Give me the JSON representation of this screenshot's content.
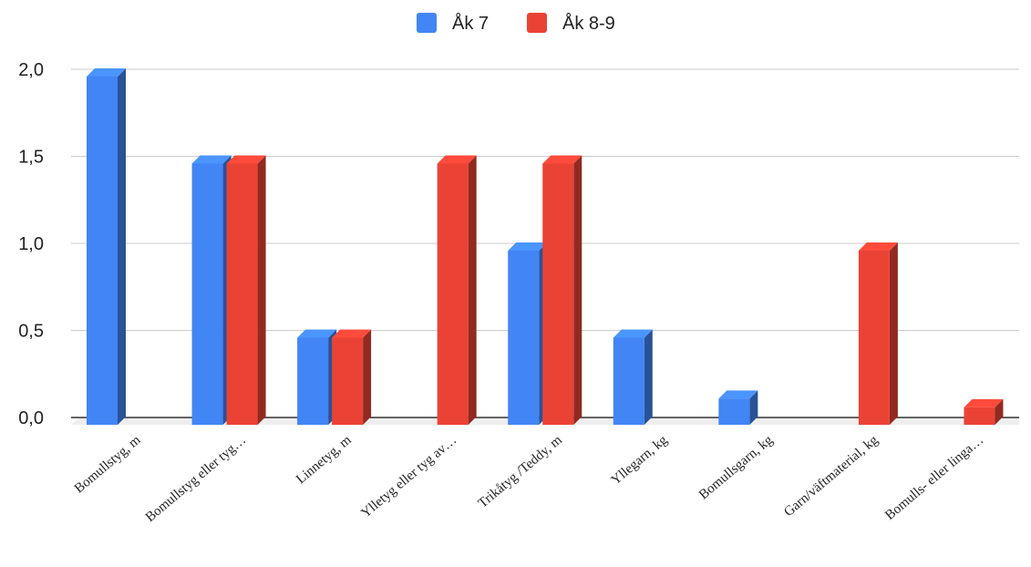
{
  "chart_data": {
    "type": "bar",
    "style": "3d",
    "categories": [
      "Bomullstyg, m",
      "Bomullstyg eller tyg…",
      "Linnetyg, m",
      "Ylletyg eller tyg av…",
      "Trikåtyg /Teddy, m",
      "Yllegarn, kg",
      "Bomullsgarn, kg",
      "Garn/väftmaterial, kg",
      "Bomulls- eller linga…"
    ],
    "series": [
      {
        "name": "Åk 7",
        "color": "#4285f4",
        "values": [
          2.0,
          1.5,
          0.5,
          0,
          1.0,
          0.5,
          0.15,
          0,
          0
        ]
      },
      {
        "name": "Åk 8-9",
        "color": "#ea4335",
        "values": [
          0,
          1.5,
          0.5,
          1.5,
          1.5,
          0,
          0,
          1.0,
          0.1
        ]
      }
    ],
    "yticks": [
      "0,0",
      "0,5",
      "1,0",
      "1,5",
      "2,0"
    ],
    "ylim": [
      0,
      2.0
    ],
    "grid": true,
    "legend_position": "top-center"
  }
}
